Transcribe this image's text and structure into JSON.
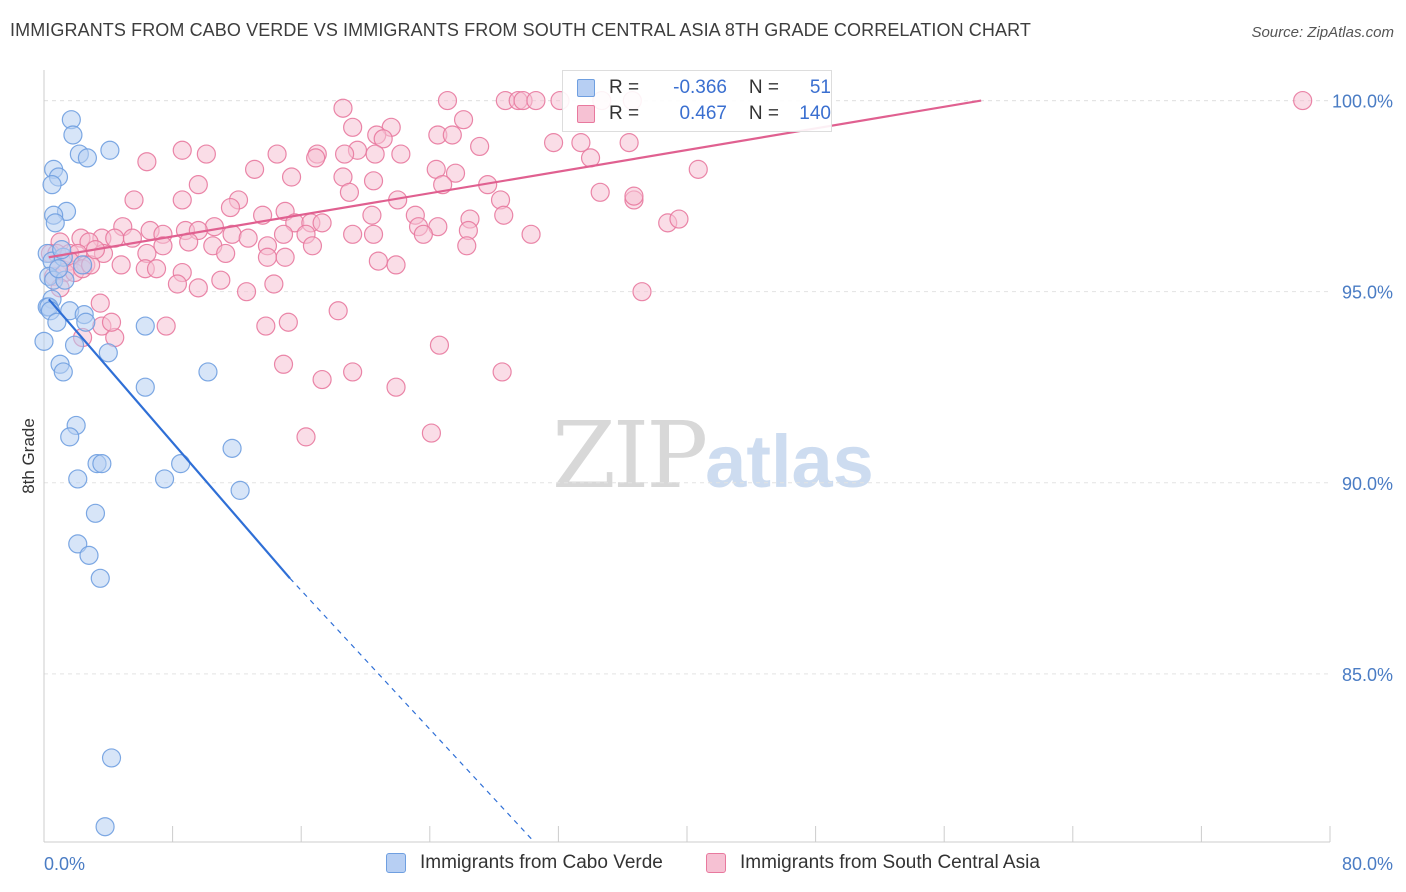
{
  "title": "IMMIGRANTS FROM CABO VERDE VS IMMIGRANTS FROM SOUTH CENTRAL ASIA 8TH GRADE CORRELATION CHART",
  "source": "Source: ZipAtlas.com",
  "watermark": {
    "zip": "ZIP",
    "atlas": "atlas"
  },
  "colors": {
    "blue": "#6f9fe0",
    "blue_fill": "#b7cff3",
    "blue_line": "#2f6fd6",
    "pink": "#e8799e",
    "pink_fill": "#f6c1d3",
    "pink_line": "#e06090",
    "tick_label": "#4a7cc4"
  },
  "legend_top": {
    "rows": [
      {
        "r_label": "R =",
        "r_value": "-0.366",
        "n_label": "N =",
        "n_value": "51"
      },
      {
        "r_label": "R =",
        "r_value": "0.467",
        "n_label": "N =",
        "n_value": "140"
      }
    ]
  },
  "legend_bottom": [
    "Immigrants from Cabo Verde",
    "Immigrants from South Central Asia"
  ],
  "chart_data": {
    "type": "scatter",
    "title": "IMMIGRANTS FROM CABO VERDE VS IMMIGRANTS FROM SOUTH CENTRAL ASIA 8TH GRADE CORRELATION CHART",
    "xlabel": "",
    "ylabel": "8th Grade",
    "xlim": [
      0,
      80
    ],
    "ylim": [
      80.6,
      100.8
    ],
    "x_tick_labels": [
      "0.0%",
      "80.0%"
    ],
    "y_ticks": [
      85,
      90,
      95,
      100
    ],
    "y_tick_labels": [
      "85.0%",
      "90.0%",
      "95.0%",
      "100.0%"
    ],
    "grid": true,
    "legend": "top-center and bottom",
    "series": [
      {
        "name": "Immigrants from Cabo Verde",
        "color": "#6f9fe0",
        "r": -0.366,
        "n": 51,
        "trend": {
          "x0": 0.3,
          "y0": 94.8,
          "x1": 15.3,
          "y1": 87.5,
          "dash_to_x": 30.5,
          "dash_to_y": 80.6
        },
        "points": [
          [
            1.7,
            99.5
          ],
          [
            1.8,
            99.1
          ],
          [
            2.2,
            98.6
          ],
          [
            4.1,
            98.7
          ],
          [
            2.7,
            98.5
          ],
          [
            0.6,
            98.2
          ],
          [
            0.9,
            98.0
          ],
          [
            0.5,
            97.8
          ],
          [
            1.4,
            97.1
          ],
          [
            0.6,
            97.0
          ],
          [
            0.7,
            96.8
          ],
          [
            0.2,
            96.0
          ],
          [
            0.5,
            95.8
          ],
          [
            1.2,
            95.9
          ],
          [
            2.4,
            95.7
          ],
          [
            0.3,
            95.4
          ],
          [
            0.6,
            95.3
          ],
          [
            1.3,
            95.3
          ],
          [
            0.5,
            94.8
          ],
          [
            0.2,
            94.6
          ],
          [
            0.3,
            94.6
          ],
          [
            0.4,
            94.5
          ],
          [
            1.6,
            94.5
          ],
          [
            2.5,
            94.4
          ],
          [
            0.8,
            94.2
          ],
          [
            2.6,
            94.2
          ],
          [
            6.3,
            94.1
          ],
          [
            0.0,
            93.7
          ],
          [
            1.9,
            93.6
          ],
          [
            4.0,
            93.4
          ],
          [
            1.0,
            93.1
          ],
          [
            1.2,
            92.9
          ],
          [
            10.2,
            92.9
          ],
          [
            6.3,
            92.5
          ],
          [
            2.0,
            91.5
          ],
          [
            1.6,
            91.2
          ],
          [
            11.7,
            90.9
          ],
          [
            3.3,
            90.5
          ],
          [
            3.6,
            90.5
          ],
          [
            8.5,
            90.5
          ],
          [
            2.1,
            90.1
          ],
          [
            7.5,
            90.1
          ],
          [
            12.2,
            89.8
          ],
          [
            3.2,
            89.2
          ],
          [
            2.1,
            88.4
          ],
          [
            2.8,
            88.1
          ],
          [
            3.5,
            87.5
          ],
          [
            4.2,
            82.8
          ],
          [
            3.8,
            81.0
          ],
          [
            0.9,
            95.6
          ],
          [
            1.1,
            96.1
          ]
        ]
      },
      {
        "name": "Immigrants from South Central Asia",
        "color": "#e8799e",
        "r": 0.467,
        "n": 140,
        "trend": {
          "x0": 0.3,
          "y0": 95.9,
          "x1": 58.3,
          "y1": 100.0
        },
        "points": [
          [
            18.6,
            99.8
          ],
          [
            25.1,
            100.0
          ],
          [
            28.7,
            100.0
          ],
          [
            29.5,
            100.0
          ],
          [
            29.8,
            100.0
          ],
          [
            30.6,
            100.0
          ],
          [
            32.1,
            100.0
          ],
          [
            34.7,
            100.0
          ],
          [
            36.6,
            100.0
          ],
          [
            78.3,
            100.0
          ],
          [
            26.1,
            99.5
          ],
          [
            19.2,
            99.3
          ],
          [
            21.6,
            99.3
          ],
          [
            20.7,
            99.1
          ],
          [
            21.1,
            99.0
          ],
          [
            24.5,
            99.1
          ],
          [
            25.4,
            99.1
          ],
          [
            31.7,
            98.9
          ],
          [
            33.4,
            98.9
          ],
          [
            36.4,
            98.9
          ],
          [
            27.1,
            98.8
          ],
          [
            8.6,
            98.7
          ],
          [
            14.5,
            98.6
          ],
          [
            17.0,
            98.6
          ],
          [
            19.5,
            98.7
          ],
          [
            18.7,
            98.6
          ],
          [
            20.6,
            98.6
          ],
          [
            22.2,
            98.6
          ],
          [
            10.1,
            98.6
          ],
          [
            16.9,
            98.5
          ],
          [
            34.0,
            98.5
          ],
          [
            6.4,
            98.4
          ],
          [
            13.1,
            98.2
          ],
          [
            24.4,
            98.2
          ],
          [
            25.6,
            98.1
          ],
          [
            15.4,
            98.0
          ],
          [
            18.6,
            98.0
          ],
          [
            20.5,
            97.9
          ],
          [
            40.7,
            98.2
          ],
          [
            9.6,
            97.8
          ],
          [
            24.8,
            97.8
          ],
          [
            27.6,
            97.8
          ],
          [
            19.0,
            97.6
          ],
          [
            5.6,
            97.4
          ],
          [
            8.6,
            97.4
          ],
          [
            12.1,
            97.4
          ],
          [
            22.0,
            97.4
          ],
          [
            28.4,
            97.4
          ],
          [
            34.6,
            97.6
          ],
          [
            36.7,
            97.4
          ],
          [
            11.6,
            97.2
          ],
          [
            13.6,
            97.0
          ],
          [
            15.0,
            97.1
          ],
          [
            20.4,
            97.0
          ],
          [
            23.1,
            97.0
          ],
          [
            26.5,
            96.9
          ],
          [
            28.6,
            97.0
          ],
          [
            4.9,
            96.7
          ],
          [
            6.6,
            96.6
          ],
          [
            8.8,
            96.6
          ],
          [
            10.6,
            96.7
          ],
          [
            15.6,
            96.8
          ],
          [
            16.6,
            96.8
          ],
          [
            17.3,
            96.8
          ],
          [
            23.3,
            96.7
          ],
          [
            24.5,
            96.7
          ],
          [
            26.4,
            96.6
          ],
          [
            7.4,
            96.5
          ],
          [
            9.6,
            96.6
          ],
          [
            11.7,
            96.5
          ],
          [
            2.3,
            96.4
          ],
          [
            3.6,
            96.4
          ],
          [
            4.4,
            96.4
          ],
          [
            5.5,
            96.4
          ],
          [
            12.7,
            96.4
          ],
          [
            14.9,
            96.5
          ],
          [
            16.3,
            96.5
          ],
          [
            19.2,
            96.5
          ],
          [
            20.5,
            96.5
          ],
          [
            23.6,
            96.5
          ],
          [
            1.0,
            96.3
          ],
          [
            2.8,
            96.3
          ],
          [
            7.4,
            96.2
          ],
          [
            9.0,
            96.3
          ],
          [
            10.5,
            96.2
          ],
          [
            13.9,
            96.2
          ],
          [
            16.7,
            96.2
          ],
          [
            26.3,
            96.2
          ],
          [
            30.3,
            96.5
          ],
          [
            0.4,
            96.0
          ],
          [
            0.8,
            96.0
          ],
          [
            1.6,
            96.0
          ],
          [
            2.1,
            96.0
          ],
          [
            3.7,
            96.0
          ],
          [
            6.4,
            96.0
          ],
          [
            11.3,
            96.0
          ],
          [
            13.9,
            95.9
          ],
          [
            15.0,
            95.9
          ],
          [
            20.8,
            95.8
          ],
          [
            21.9,
            95.7
          ],
          [
            1.6,
            95.8
          ],
          [
            2.6,
            95.7
          ],
          [
            4.8,
            95.7
          ],
          [
            6.3,
            95.6
          ],
          [
            7.0,
            95.6
          ],
          [
            8.6,
            95.5
          ],
          [
            11.0,
            95.3
          ],
          [
            14.3,
            95.2
          ],
          [
            8.3,
            95.2
          ],
          [
            9.6,
            95.1
          ],
          [
            12.6,
            95.0
          ],
          [
            37.2,
            95.0
          ],
          [
            0.6,
            95.4
          ],
          [
            0.9,
            95.6
          ],
          [
            1.3,
            95.5
          ],
          [
            1.9,
            95.5
          ],
          [
            2.4,
            95.6
          ],
          [
            2.9,
            95.7
          ],
          [
            1.0,
            95.1
          ],
          [
            3.5,
            94.7
          ],
          [
            18.3,
            94.5
          ],
          [
            15.2,
            94.2
          ],
          [
            3.6,
            94.1
          ],
          [
            7.6,
            94.1
          ],
          [
            13.8,
            94.1
          ],
          [
            4.4,
            93.8
          ],
          [
            2.4,
            93.8
          ],
          [
            24.6,
            93.6
          ],
          [
            14.9,
            93.1
          ],
          [
            19.2,
            92.9
          ],
          [
            28.5,
            92.9
          ],
          [
            17.3,
            92.7
          ],
          [
            21.9,
            92.5
          ],
          [
            24.1,
            91.3
          ],
          [
            16.3,
            91.2
          ],
          [
            4.2,
            94.2
          ],
          [
            38.8,
            96.8
          ],
          [
            39.5,
            96.9
          ],
          [
            36.7,
            97.5
          ],
          [
            3.2,
            96.1
          ]
        ]
      }
    ]
  }
}
